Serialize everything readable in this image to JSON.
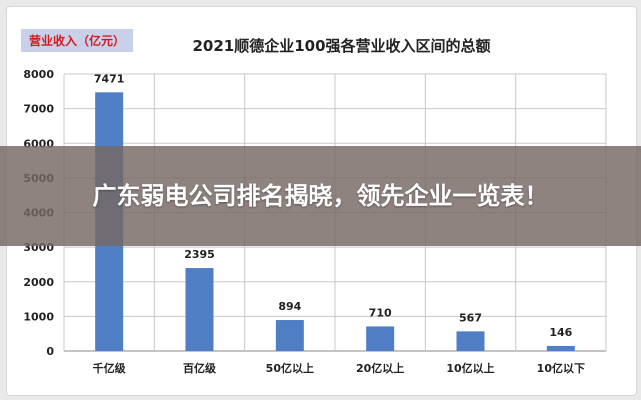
{
  "overlay": {
    "headline": "广东弱电公司排名揭晓，领先企业一览表！"
  },
  "chart_data": {
    "type": "bar",
    "title": "2021顺德企业100强各营业收入区间的总额",
    "unit_label": "营业收入（亿元）",
    "categories": [
      "千亿级",
      "百亿级",
      "50亿以上",
      "20亿以上",
      "10亿以上",
      "10亿以下"
    ],
    "values": [
      7471,
      2395,
      894,
      710,
      567,
      146
    ],
    "data_labels": [
      "7471",
      "2395",
      "894",
      "710",
      "567",
      "146"
    ],
    "ylim": [
      0,
      8000
    ],
    "yticks": [
      0,
      1000,
      2000,
      3000,
      4000,
      5000,
      6000,
      7000,
      8000
    ],
    "grid": true,
    "bar_color": "#4f7ec4",
    "grid_color": "#c8c8c8"
  }
}
